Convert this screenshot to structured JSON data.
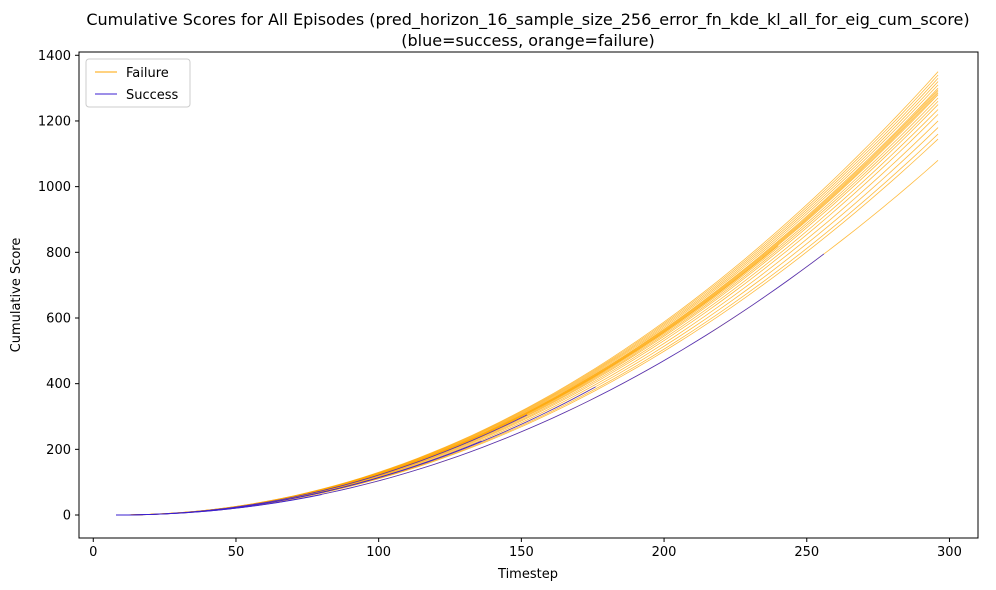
{
  "chart_data": {
    "type": "line",
    "title": "Cumulative Scores for All Episodes (pred_horizon_16_sample_size_256_error_fn_kde_kl_all_for_eig_cum_score)",
    "subtitle": "(blue=success, orange=failure)",
    "xlabel": "Timestep",
    "ylabel": "Cumulative Score",
    "xlim": [
      -5,
      310
    ],
    "ylim": [
      -70,
      1410
    ],
    "xticks": [
      0,
      50,
      100,
      150,
      200,
      250,
      300
    ],
    "yticks": [
      0,
      200,
      400,
      600,
      800,
      1000,
      1200,
      1400
    ],
    "grid": false,
    "legend": {
      "position": "upper-left",
      "entries": [
        {
          "label": "Failure",
          "color": "#FFA500"
        },
        {
          "label": "Success",
          "color": "#3B1FD0"
        }
      ]
    },
    "colors": {
      "failure": "#FFA500",
      "success": "#3B1FD0"
    },
    "series": [
      {
        "group": "failure",
        "x_start": 8,
        "x_end": 296,
        "y_end": 1350
      },
      {
        "group": "failure",
        "x_start": 8,
        "x_end": 296,
        "y_end": 1340
      },
      {
        "group": "failure",
        "x_start": 8,
        "x_end": 296,
        "y_end": 1330
      },
      {
        "group": "failure",
        "x_start": 8,
        "x_end": 296,
        "y_end": 1320
      },
      {
        "group": "failure",
        "x_start": 8,
        "x_end": 296,
        "y_end": 1310
      },
      {
        "group": "failure",
        "x_start": 8,
        "x_end": 296,
        "y_end": 1300
      },
      {
        "group": "failure",
        "x_start": 8,
        "x_end": 296,
        "y_end": 1295
      },
      {
        "group": "failure",
        "x_start": 8,
        "x_end": 296,
        "y_end": 1290
      },
      {
        "group": "failure",
        "x_start": 8,
        "x_end": 296,
        "y_end": 1285
      },
      {
        "group": "failure",
        "x_start": 8,
        "x_end": 296,
        "y_end": 1280
      },
      {
        "group": "failure",
        "x_start": 8,
        "x_end": 296,
        "y_end": 1270
      },
      {
        "group": "failure",
        "x_start": 8,
        "x_end": 296,
        "y_end": 1260
      },
      {
        "group": "failure",
        "x_start": 8,
        "x_end": 296,
        "y_end": 1250
      },
      {
        "group": "failure",
        "x_start": 8,
        "x_end": 296,
        "y_end": 1235
      },
      {
        "group": "failure",
        "x_start": 8,
        "x_end": 296,
        "y_end": 1220
      },
      {
        "group": "failure",
        "x_start": 8,
        "x_end": 296,
        "y_end": 1200
      },
      {
        "group": "failure",
        "x_start": 8,
        "x_end": 296,
        "y_end": 1180
      },
      {
        "group": "failure",
        "x_start": 8,
        "x_end": 296,
        "y_end": 1160
      },
      {
        "group": "failure",
        "x_start": 8,
        "x_end": 296,
        "y_end": 1145
      },
      {
        "group": "failure",
        "x_start": 8,
        "x_end": 296,
        "y_end": 1080
      },
      {
        "group": "failure",
        "x_start": 8,
        "x_end": 240,
        "y_end": 820
      },
      {
        "group": "success",
        "x_start": 8,
        "x_end": 256,
        "y_end": 795
      },
      {
        "group": "success",
        "x_start": 8,
        "x_end": 176,
        "y_end": 390
      },
      {
        "group": "success",
        "x_start": 8,
        "x_end": 152,
        "y_end": 305
      },
      {
        "group": "success",
        "x_start": 8,
        "x_end": 136,
        "y_end": 225
      },
      {
        "group": "success",
        "x_start": 8,
        "x_end": 80,
        "y_end": 62
      }
    ]
  }
}
